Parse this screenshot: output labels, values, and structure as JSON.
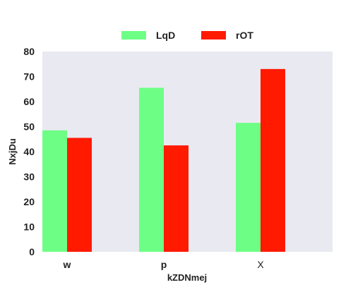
{
  "chart_data": {
    "type": "bar",
    "title": "",
    "xlabel": "kZDNmej",
    "ylabel": "NxjDu",
    "categories": [
      "w",
      "p",
      "X"
    ],
    "series": [
      {
        "name": "LqD",
        "color": "#6dff85",
        "values": [
          48.5,
          65.5,
          51.5
        ]
      },
      {
        "name": "rOT",
        "color": "#ff1a00",
        "values": [
          45.5,
          42.5,
          73
        ]
      }
    ],
    "ylim": [
      0,
      80
    ],
    "yticks": [
      0,
      10,
      20,
      30,
      40,
      50,
      60,
      70,
      80
    ],
    "grid": false,
    "plot_background": "#e9e9f1",
    "legend_position": "top-center"
  }
}
